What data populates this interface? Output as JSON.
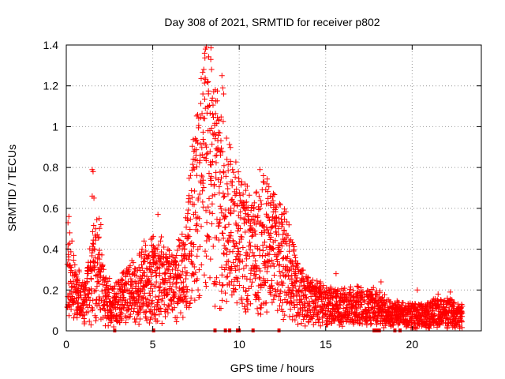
{
  "chart_data": {
    "type": "scatter",
    "title": "Day 308 of 2021, SRMTID for receiver p802",
    "xlabel": "GPS time / hours",
    "ylabel": "SRMTID / TECUs",
    "xlim": [
      0,
      24
    ],
    "ylim": [
      0,
      1.4
    ],
    "xticks": [
      0,
      5,
      10,
      15,
      20
    ],
    "xtick_labels": [
      "0",
      "5",
      "10",
      "15",
      "20"
    ],
    "yticks": [
      0,
      0.2,
      0.4,
      0.6,
      0.8,
      1.0,
      1.2,
      1.4
    ],
    "ytick_labels": [
      "0",
      "0.2",
      "0.4",
      "0.6",
      "0.8",
      "1",
      "1.2",
      "1.4"
    ],
    "grid": true,
    "marker": "+",
    "color": "#ff0000",
    "envelope": {
      "x": [
        0,
        0.3,
        0.6,
        1.0,
        1.5,
        1.8,
        2.2,
        2.8,
        3.5,
        4.5,
        5.0,
        5.5,
        6.2,
        6.8,
        7.3,
        7.8,
        8.2,
        8.6,
        9.0,
        9.5,
        10.0,
        10.5,
        11.0,
        11.5,
        12.0,
        12.5,
        13.0,
        13.5,
        14.0,
        15.0,
        16.0,
        17.0,
        18.0,
        18.5,
        19.0,
        20.0,
        21.0,
        22.0,
        22.9
      ],
      "y": [
        0.26,
        0.24,
        0.18,
        0.13,
        0.28,
        0.32,
        0.16,
        0.12,
        0.18,
        0.22,
        0.26,
        0.24,
        0.2,
        0.28,
        0.5,
        0.72,
        0.82,
        0.68,
        0.56,
        0.48,
        0.44,
        0.38,
        0.36,
        0.42,
        0.4,
        0.34,
        0.26,
        0.18,
        0.15,
        0.12,
        0.11,
        0.12,
        0.11,
        0.09,
        0.08,
        0.07,
        0.08,
        0.09,
        0.07
      ]
    },
    "highlight_points": [
      {
        "x": 0.1,
        "y": 0.53
      },
      {
        "x": 0.15,
        "y": 0.56
      },
      {
        "x": 0.2,
        "y": 0.48
      },
      {
        "x": 1.5,
        "y": 0.79
      },
      {
        "x": 1.55,
        "y": 0.78
      },
      {
        "x": 1.5,
        "y": 0.66
      },
      {
        "x": 1.6,
        "y": 0.65
      },
      {
        "x": 1.9,
        "y": 0.55
      },
      {
        "x": 2.0,
        "y": 0.52
      },
      {
        "x": 5.3,
        "y": 0.57
      },
      {
        "x": 5.5,
        "y": 0.46
      },
      {
        "x": 4.5,
        "y": 0.44
      },
      {
        "x": 7.5,
        "y": 0.86
      },
      {
        "x": 7.6,
        "y": 0.92
      },
      {
        "x": 7.9,
        "y": 1.16
      },
      {
        "x": 8.0,
        "y": 1.36
      },
      {
        "x": 8.05,
        "y": 1.38
      },
      {
        "x": 8.1,
        "y": 1.39
      },
      {
        "x": 7.95,
        "y": 1.28
      },
      {
        "x": 8.2,
        "y": 1.22
      },
      {
        "x": 8.4,
        "y": 1.28
      },
      {
        "x": 8.45,
        "y": 1.14
      },
      {
        "x": 8.0,
        "y": 1.04
      },
      {
        "x": 8.2,
        "y": 0.98
      },
      {
        "x": 9.0,
        "y": 1.25
      },
      {
        "x": 9.05,
        "y": 1.19
      },
      {
        "x": 9.1,
        "y": 1.16
      },
      {
        "x": 8.9,
        "y": 0.88
      },
      {
        "x": 9.5,
        "y": 0.83
      },
      {
        "x": 9.3,
        "y": 0.72
      },
      {
        "x": 8.5,
        "y": 0.96
      },
      {
        "x": 8.7,
        "y": 0.86
      },
      {
        "x": 7.3,
        "y": 0.62
      },
      {
        "x": 11.2,
        "y": 0.79
      },
      {
        "x": 11.4,
        "y": 0.76
      },
      {
        "x": 11.6,
        "y": 0.72
      },
      {
        "x": 11.0,
        "y": 0.68
      },
      {
        "x": 11.8,
        "y": 0.66
      },
      {
        "x": 10.5,
        "y": 0.57
      },
      {
        "x": 12.9,
        "y": 0.44
      },
      {
        "x": 13.3,
        "y": 0.32
      },
      {
        "x": 14.7,
        "y": 0.24
      },
      {
        "x": 15.6,
        "y": 0.28
      },
      {
        "x": 18.2,
        "y": 0.24
      },
      {
        "x": 20.3,
        "y": 0.2
      },
      {
        "x": 21.5,
        "y": 0.18
      },
      {
        "x": 22.2,
        "y": 0.19
      },
      {
        "x": 8.6,
        "y": 0.12
      },
      {
        "x": 9.8,
        "y": 0.35
      },
      {
        "x": 10.8,
        "y": 0.32
      }
    ],
    "zero_points_x": [
      2.8,
      5.05,
      8.6,
      9.2,
      9.45,
      9.9,
      10.0,
      10.8,
      12.3,
      17.8,
      17.9,
      18.0,
      18.1,
      19.0,
      19.3
    ]
  }
}
